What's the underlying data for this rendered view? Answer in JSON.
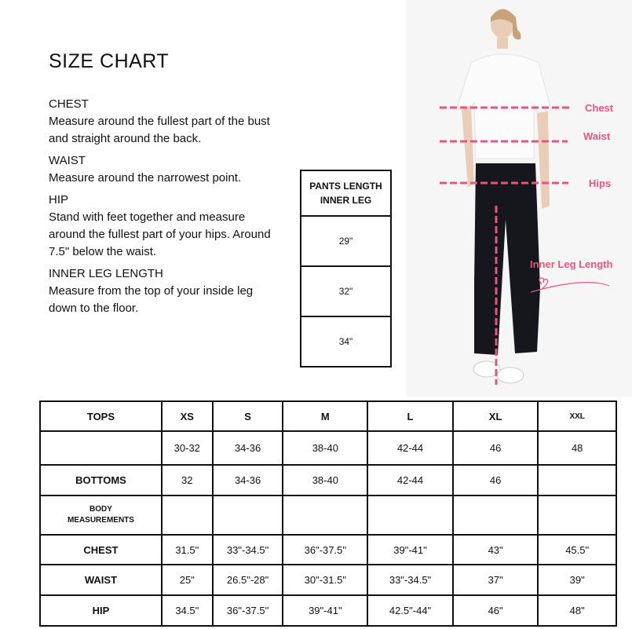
{
  "title": "SIZE CHART",
  "guide": [
    {
      "heading": "CHEST",
      "text": "Measure around the fullest part of the bust and straight around the back."
    },
    {
      "heading": "WAIST",
      "text": "Measure around the narrowest point."
    },
    {
      "heading": "HIP",
      "text": "Stand with feet together and measure around the fullest part of your hips. Around 7.5\" below the waist."
    },
    {
      "heading": "INNER LEG LENGTH",
      "text": "Measure from the top of your inside leg down to the floor."
    }
  ],
  "pants_table": {
    "header_line1": "PANTS LENGTH",
    "header_line2": "INNER LEG",
    "values": [
      "29\"",
      "32\"",
      "34\""
    ]
  },
  "photo_labels": {
    "chest": "Chest",
    "waist": "Waist",
    "hips": "Hips",
    "inner_leg": "Inner Leg Length",
    "accent_color": "#e8547e"
  },
  "size_table": {
    "header": [
      "TOPS",
      "XS",
      "S",
      "M",
      "L",
      "XL",
      "XXL"
    ],
    "rows": [
      [
        "",
        "30-32",
        "34-36",
        "38-40",
        "42-44",
        "46",
        "48"
      ],
      [
        "BOTTOMS",
        "32",
        "34-36",
        "38-40",
        "42-44",
        "46",
        ""
      ],
      [
        "BODY MEASUREMENTS",
        "",
        "",
        "",
        "",
        "",
        ""
      ],
      [
        "CHEST",
        "31.5\"",
        "33\"-34.5\"",
        "36\"-37.5\"",
        "39\"-41\"",
        "43\"",
        "45.5\""
      ],
      [
        "WAIST",
        "25\"",
        "26.5\"-28\"",
        "30\"-31.5\"",
        "33\"-34.5\"",
        "37\"",
        "39\""
      ],
      [
        "HIP",
        "34.5\"",
        "36\"-37.5\"",
        "39\"-41\"",
        "42.5\"-44\"",
        "46\"",
        "48\""
      ]
    ]
  }
}
